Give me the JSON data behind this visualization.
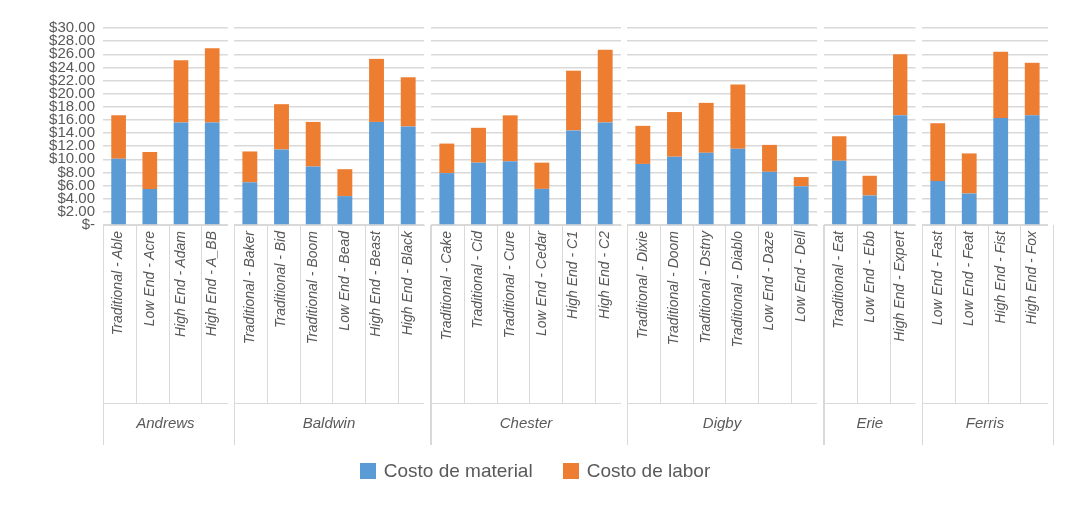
{
  "chart_data": [
    {
      "type": "bar",
      "stacked": true,
      "grid": "y",
      "legend": "bottom",
      "xlabel": "Andrews",
      "categories": [
        "Traditional - Able",
        "Low End - Acre",
        "High End - Adam",
        "High End - A_BB"
      ],
      "series": [
        {
          "name": "Costo de material",
          "color": "#5b9bd5",
          "values": [
            10.1,
            5.5,
            15.6,
            15.6
          ]
        },
        {
          "name": "Costo de labor",
          "color": "#ed7d31",
          "values": [
            6.6,
            5.6,
            9.5,
            11.3
          ]
        }
      ],
      "ylim": [
        0,
        30
      ],
      "yticks": [
        {
          "value": 0,
          "label": "$-"
        },
        {
          "value": 2,
          "label": "$2.00"
        },
        {
          "value": 4,
          "label": "$4.00"
        },
        {
          "value": 6,
          "label": "$6.00"
        },
        {
          "value": 8,
          "label": "$8.00"
        },
        {
          "value": 10,
          "label": "$10.00"
        },
        {
          "value": 12,
          "label": "$12.00"
        },
        {
          "value": 14,
          "label": "$14.00"
        },
        {
          "value": 16,
          "label": "$16.00"
        },
        {
          "value": 18,
          "label": "$18.00"
        },
        {
          "value": 20,
          "label": "$20.00"
        },
        {
          "value": 22,
          "label": "$22.00"
        },
        {
          "value": 24,
          "label": "$24.00"
        },
        {
          "value": 26,
          "label": "$26.00"
        },
        {
          "value": 28,
          "label": "$28.00"
        },
        {
          "value": 30,
          "label": "$30.00"
        }
      ]
    },
    {
      "type": "bar",
      "stacked": true,
      "grid": "y",
      "xlabel": "Baldwin",
      "tick_labels": "x",
      "categories": [
        "Traditional - Baker",
        "Traditional - Bid",
        "Traditional - Boom",
        "Low End - Bead",
        "High End - Beast",
        "High End - Black"
      ],
      "series": [
        {
          "color": "#5b9bd5",
          "values": [
            6.5,
            11.5,
            8.9,
            4.4,
            15.7,
            15.0
          ]
        },
        {
          "color": "#ed7d31",
          "values": [
            4.7,
            6.9,
            6.8,
            4.1,
            9.6,
            7.5
          ]
        }
      ],
      "ylim": [
        0,
        30
      ],
      "yticks": [
        0,
        2,
        4,
        6,
        8,
        10,
        12,
        14,
        16,
        18,
        20,
        22,
        24,
        26,
        28,
        30
      ]
    },
    {
      "type": "bar",
      "stacked": true,
      "grid": "y",
      "xlabel": "Chester",
      "tick_labels": "x",
      "categories": [
        "Traditional - Cake",
        "Traditional - Cid",
        "Traditional - Cure",
        "Low End - Cedar",
        "High End - C1",
        "High End - C2"
      ],
      "series": [
        {
          "color": "#5b9bd5",
          "values": [
            7.9,
            9.5,
            9.7,
            5.5,
            14.4,
            15.6
          ]
        },
        {
          "color": "#ed7d31",
          "values": [
            4.5,
            5.3,
            7.0,
            4.0,
            9.1,
            11.1
          ]
        }
      ],
      "ylim": [
        0,
        30
      ],
      "yticks": [
        0,
        2,
        4,
        6,
        8,
        10,
        12,
        14,
        16,
        18,
        20,
        22,
        24,
        26,
        28,
        30
      ]
    },
    {
      "type": "bar",
      "stacked": true,
      "grid": "y",
      "xlabel": "Digby",
      "tick_labels": "x",
      "categories": [
        "Traditional - Dixie",
        "Traditional - Doom",
        "Traditional - Dstny",
        "Traditional - Diablo",
        "Low End - Daze",
        "Low End - Dell"
      ],
      "series": [
        {
          "color": "#5b9bd5",
          "values": [
            9.3,
            10.4,
            11.0,
            11.6,
            8.1,
            5.9
          ]
        },
        {
          "color": "#ed7d31",
          "values": [
            5.8,
            6.8,
            7.6,
            9.8,
            4.1,
            1.4
          ]
        }
      ],
      "ylim": [
        0,
        30
      ],
      "yticks": [
        0,
        2,
        4,
        6,
        8,
        10,
        12,
        14,
        16,
        18,
        20,
        22,
        24,
        26,
        28,
        30
      ]
    },
    {
      "type": "bar",
      "stacked": true,
      "grid": "y",
      "xlabel": "Erie",
      "tick_labels": "x",
      "categories": [
        "Traditional - Eat",
        "Low End - Ebb",
        "High End - Expert"
      ],
      "series": [
        {
          "color": "#5b9bd5",
          "values": [
            9.8,
            4.5,
            16.7
          ]
        },
        {
          "color": "#ed7d31",
          "values": [
            3.7,
            3.0,
            9.3
          ]
        }
      ],
      "ylim": [
        0,
        30
      ],
      "yticks": [
        0,
        2,
        4,
        6,
        8,
        10,
        12,
        14,
        16,
        18,
        20,
        22,
        24,
        26,
        28,
        30
      ]
    },
    {
      "type": "bar",
      "stacked": true,
      "grid": "y",
      "xlabel": "Ferris",
      "tick_labels": "x",
      "categories": [
        "Low End - Fast",
        "Low End - Feat",
        "High End - Fist",
        "High End - Fox"
      ],
      "series": [
        {
          "color": "#5b9bd5",
          "values": [
            6.7,
            4.8,
            16.3,
            16.7
          ]
        },
        {
          "color": "#ed7d31",
          "values": [
            8.8,
            6.1,
            10.1,
            8.0
          ]
        }
      ],
      "ylim": [
        0,
        30
      ],
      "yticks": [
        0,
        2,
        4,
        6,
        8,
        10,
        12,
        14,
        16,
        18,
        20,
        22,
        24,
        26,
        28,
        30
      ]
    }
  ]
}
